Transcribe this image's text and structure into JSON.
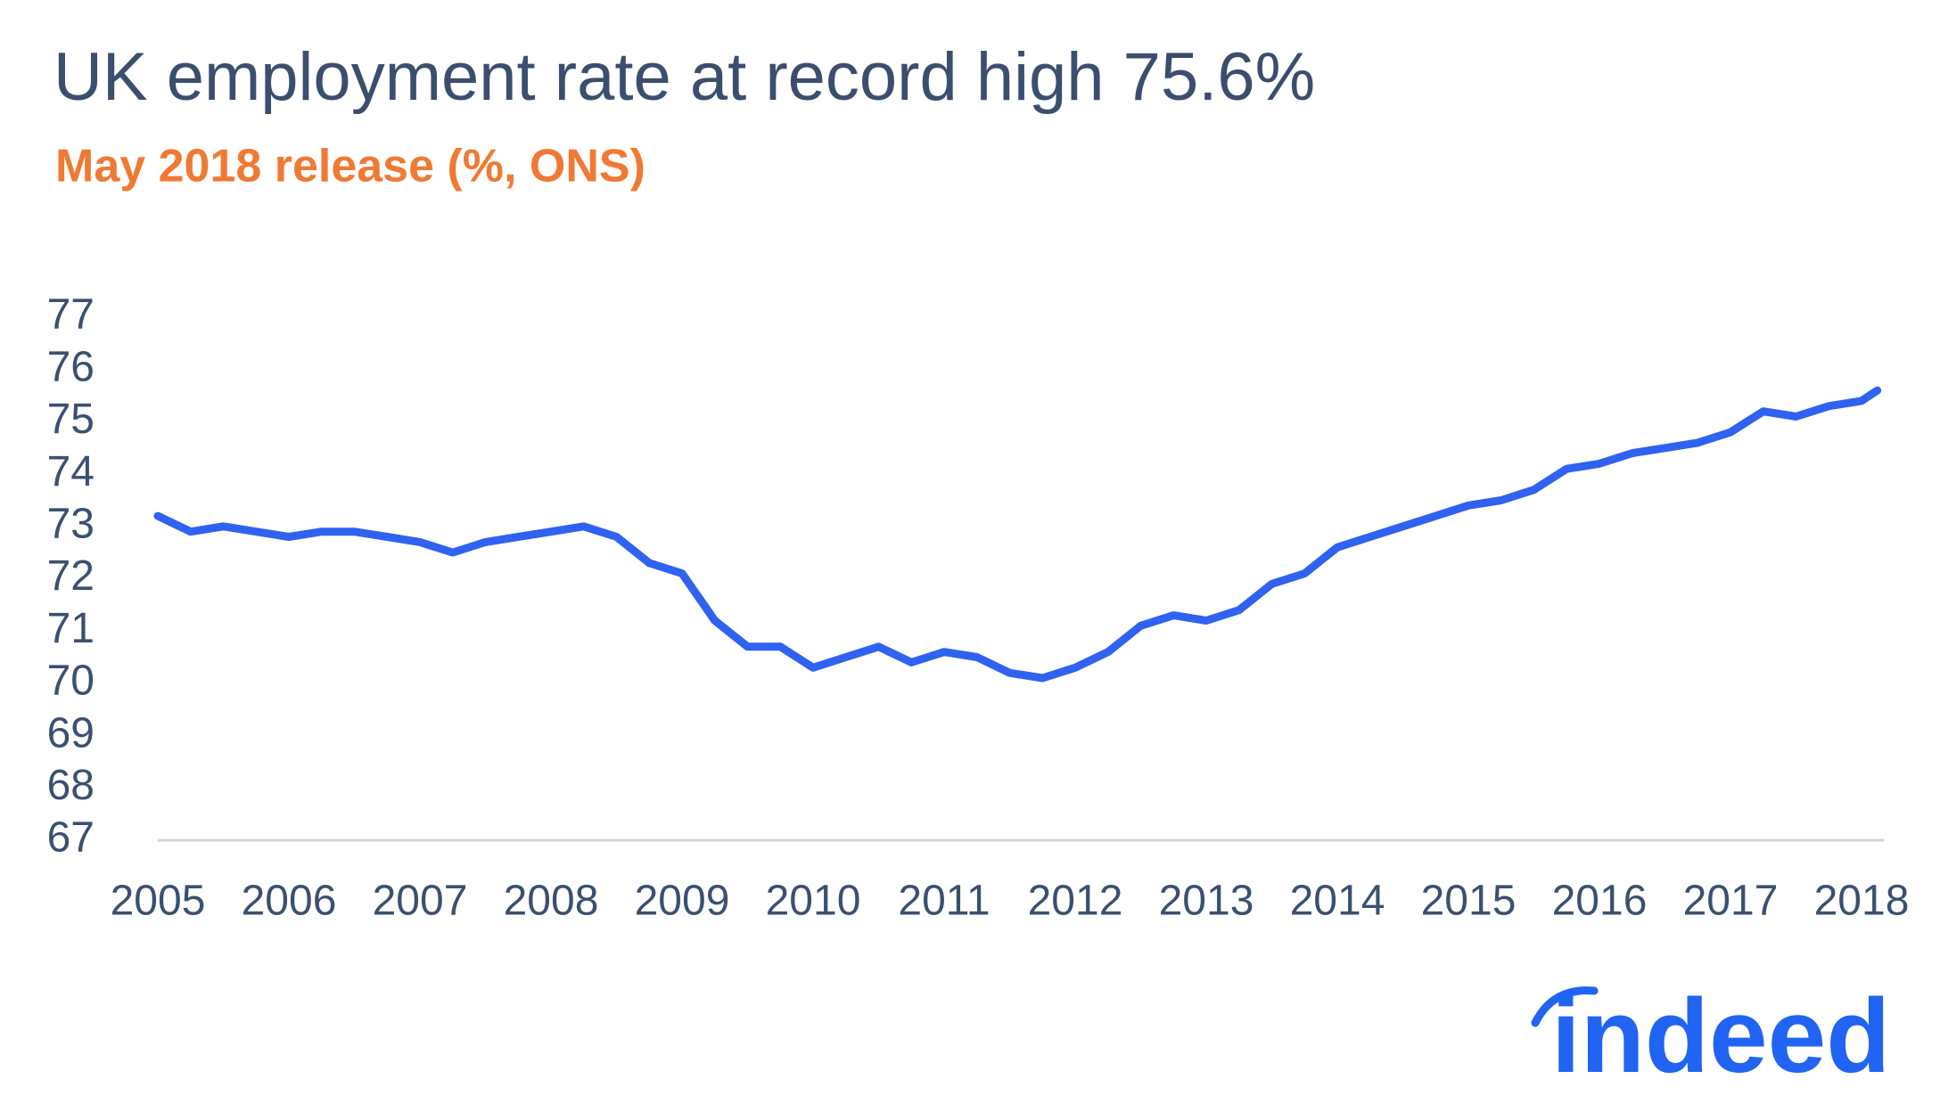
{
  "chart_data": {
    "type": "line",
    "title": "UK employment rate at record high 75.6%",
    "subtitle": "May 2018 release (%, ONS)",
    "logo": "indeed",
    "color": "#2f62f0",
    "x": [
      2005.0,
      2005.25,
      2005.5,
      2005.75,
      2006.0,
      2006.25,
      2006.5,
      2006.75,
      2007.0,
      2007.25,
      2007.5,
      2007.75,
      2008.0,
      2008.25,
      2008.5,
      2008.75,
      2009.0,
      2009.25,
      2009.5,
      2009.75,
      2010.0,
      2010.25,
      2010.5,
      2010.75,
      2011.0,
      2011.25,
      2011.5,
      2011.75,
      2012.0,
      2012.25,
      2012.5,
      2012.75,
      2013.0,
      2013.25,
      2013.5,
      2013.75,
      2014.0,
      2014.25,
      2014.5,
      2014.75,
      2015.0,
      2015.25,
      2015.5,
      2015.75,
      2016.0,
      2016.25,
      2016.5,
      2016.75,
      2017.0,
      2017.25,
      2017.5,
      2017.75,
      2018.0,
      2018.12
    ],
    "values": [
      73.2,
      72.9,
      73.0,
      72.9,
      72.8,
      72.9,
      72.9,
      72.8,
      72.7,
      72.5,
      72.7,
      72.8,
      72.9,
      73.0,
      72.8,
      72.3,
      72.1,
      71.2,
      70.7,
      70.7,
      70.3,
      70.5,
      70.7,
      70.4,
      70.6,
      70.5,
      70.2,
      70.1,
      70.3,
      70.6,
      71.1,
      71.3,
      71.2,
      71.4,
      71.9,
      72.1,
      72.6,
      72.8,
      73.0,
      73.2,
      73.4,
      73.5,
      73.7,
      74.1,
      74.2,
      74.4,
      74.5,
      74.6,
      74.8,
      75.2,
      75.1,
      75.3,
      75.4,
      75.6
    ],
    "xlim": [
      2005,
      2018.17
    ],
    "xticks": [
      2005,
      2006,
      2007,
      2008,
      2009,
      2010,
      2011,
      2012,
      2013,
      2014,
      2015,
      2016,
      2017,
      2018
    ],
    "ylim": [
      67,
      77
    ],
    "yticks": [
      67,
      68,
      69,
      70,
      71,
      72,
      73,
      74,
      75,
      76,
      77
    ],
    "grid": false
  }
}
